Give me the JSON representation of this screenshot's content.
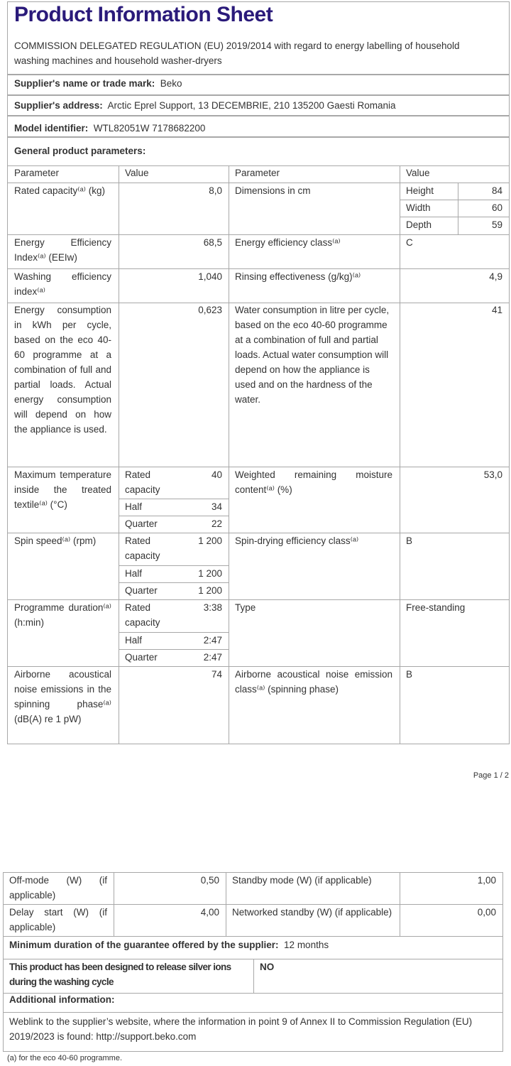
{
  "title": "Product Information Sheet",
  "regulation": "COMMISSION DELEGATED REGULATION (EU) 2019/2014 with regard to energy labelling of household washing machines and household washer-dryers",
  "supplier_name": {
    "label": "Supplier's name or trade mark:",
    "value": "Beko"
  },
  "supplier_address": {
    "label": "Supplier's address:",
    "value": "Arctic Eprel Support, 13 DECEMBRIE, 210 135200 Gaesti Romania"
  },
  "model": {
    "label": "Model identifier:",
    "value": "WTL82051W 7178682200"
  },
  "general": "General product parameters:",
  "headers": {
    "param1": "Parameter",
    "value1": "Value",
    "param2": "Parameter",
    "value2": "Value"
  },
  "rows": {
    "capacity": {
      "label": "Rated capacity⁽ᵃ⁾ (kg)",
      "value": "8,0",
      "label2": "Dimensions in cm",
      "height_l": "Height",
      "height_v": "84",
      "width_l": "Width",
      "width_v": "60",
      "depth_l": "Depth",
      "depth_v": "59"
    },
    "eei": {
      "label": "Energy Efficiency Index⁽ᵃ⁾ (EEIw)",
      "value": "68,5",
      "label2": "Energy efficiency class⁽ᵃ⁾",
      "value2": "C"
    },
    "wash": {
      "label": "Washing efficiency index⁽ᵃ⁾",
      "value": "1,040",
      "label2": "Rinsing effectiveness (g/kg)⁽ᵃ⁾",
      "value2": "4,9"
    },
    "energy": {
      "label": "Energy consumption in kWh per cycle, based on the eco 40-60 programme at a combination of full and partial loads. Actual energy consumption will depend on how the appliance is used.",
      "value": "0,623",
      "label2": "Water consumption in litre per cycle, based on the eco 40-60 programme at a combination of full and partial loads. Actual water consumption will depend on how the appliance is used and on the hardness of the water.",
      "value2": "41"
    },
    "temp": {
      "label": "Maximum temperature inside the treated textile⁽ᵃ⁾ (°C)",
      "rated_l": "Rated capacity",
      "rated_v": "40",
      "half_l": "Half",
      "half_v": "34",
      "quarter_l": "Quarter",
      "quarter_v": "22",
      "label2": "Weighted remaining moisture content⁽ᵃ⁾ (%)",
      "value2": "53,0"
    },
    "spin": {
      "label": "Spin speed⁽ᵃ⁾ (rpm)",
      "rated_l": "Rated capacity",
      "rated_v": "1 200",
      "half_l": "Half",
      "half_v": "1 200",
      "quarter_l": "Quarter",
      "quarter_v": "1 200",
      "label2": "Spin-drying efficiency class⁽ᵃ⁾",
      "value2": "B"
    },
    "prog": {
      "label": "Programme duration⁽ᵃ⁾ (h:min)",
      "rated_l": "Rated capacity",
      "rated_v": "3:38",
      "half_l": "Half",
      "half_v": "2:47",
      "quarter_l": "Quarter",
      "quarter_v": "2:47",
      "label2": "Type",
      "value2": "Free-standing"
    },
    "noise": {
      "label": "Airborne acoustical noise emissions in the spinning phase⁽ᵃ⁾ (dB(A) re 1 pW)",
      "value": "74",
      "label2": "Airborne acoustical noise emission class⁽ᵃ⁾ (spinning phase)",
      "value2": "B"
    }
  },
  "page": "Page 1 / 2",
  "page2": {
    "offmode": {
      "label": "Off-mode (W) (if applicable)",
      "value": "0,50",
      "label2": "Standby mode (W) (if applicable)",
      "value2": "1,00"
    },
    "delay": {
      "label": "Delay start (W) (if applicable)",
      "value": "4,00",
      "label2": "Networked standby (W) (if applicable)",
      "value2": "0,00"
    },
    "guarantee": {
      "label": "Minimum duration of the guarantee offered by the supplier:",
      "value": "12 months"
    },
    "silver": {
      "label": "This product has been designed to release silver ions during the washing cycle",
      "value": "NO"
    },
    "additional": "Additional information:",
    "weblink": "Weblink to the supplier’s website, where the information in point 9 of Annex II to Commission Regulation (EU) 2019/2023 is found:  http://support.beko.com",
    "footnote": "(a) for the eco 40-60 programme."
  }
}
